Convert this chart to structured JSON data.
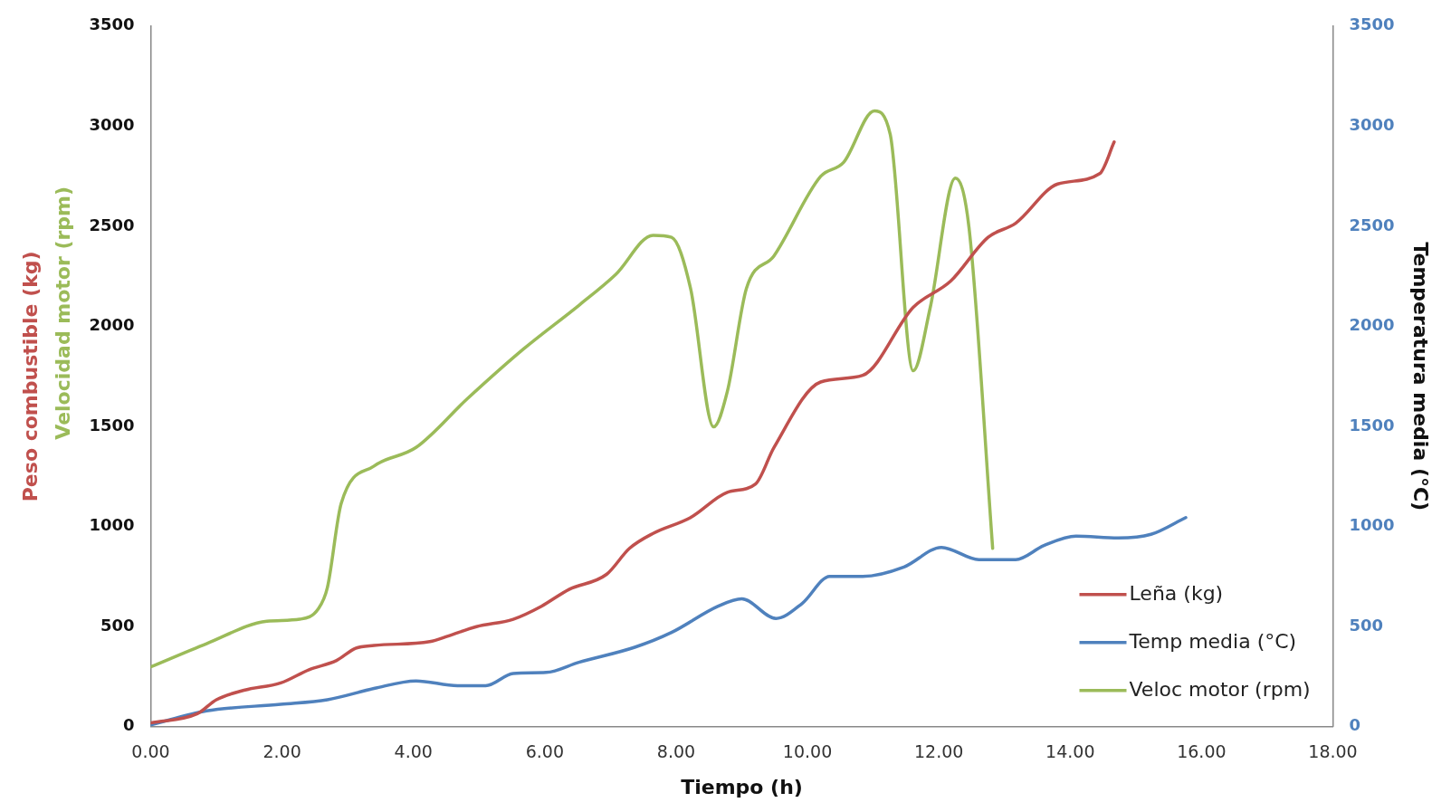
{
  "chart_data": {
    "type": "line",
    "xlabel": "Tiempo (h)",
    "ylabel": "Peso combustible (kg)",
    "y2label": "Temperatura media (°C)",
    "annotations": [
      "Velocidad motor (rpm)"
    ],
    "xlim": [
      0,
      18
    ],
    "xticks": [
      {
        "value": 0,
        "label": "0.00"
      },
      {
        "value": 2,
        "label": "2.00"
      },
      {
        "value": 4,
        "label": "4.00"
      },
      {
        "value": 6,
        "label": "6.00"
      },
      {
        "value": 8,
        "label": "8.00"
      },
      {
        "value": 10,
        "label": "10.00"
      },
      {
        "value": 12,
        "label": "12.00"
      },
      {
        "value": 14,
        "label": "14.00"
      },
      {
        "value": 16,
        "label": "16.00"
      },
      {
        "value": 18,
        "label": "18.00"
      }
    ],
    "ylim": [
      0,
      3500
    ],
    "yticks": [
      0,
      500,
      1000,
      1500,
      2000,
      2500,
      3000,
      3500
    ],
    "y2lim": [
      0,
      3500
    ],
    "y2ticks": [
      0,
      500,
      1000,
      1500,
      2000,
      2500,
      3000,
      3500
    ],
    "grid": false,
    "legend": "bottom right",
    "marker": "none",
    "line_style": "solid",
    "series": [
      {
        "name": "Leña (kg)",
        "color": "#c0504d",
        "x": [
          0,
          0.71,
          1.0,
          1.42,
          1.98,
          2.41,
          2.83,
          3.12,
          3.4,
          4.25,
          4.53,
          4.96,
          5.52,
          5.95,
          6.37,
          6.94,
          7.29,
          7.65,
          8.22,
          8.78,
          9.21,
          9.49,
          10.2,
          10.84,
          11.61,
          12.18,
          12.75,
          13.17,
          13.81,
          14.45,
          14.67
        ],
        "values": [
          19,
          65,
          135,
          182,
          219,
          285,
          331,
          392,
          406,
          425,
          453,
          500,
          537,
          602,
          686,
          761,
          891,
          966,
          1045,
          1171,
          1213,
          1395,
          1722,
          1755,
          2095,
          2226,
          2445,
          2515,
          2711,
          2763,
          2921
        ]
      },
      {
        "name": "Temp media (°C)",
        "color": "#4f81bd",
        "axis": "y2",
        "x": [
          0,
          0.85,
          1.98,
          2.69,
          3.4,
          4.04,
          4.67,
          5.1,
          5.52,
          6.02,
          6.52,
          7.37,
          7.93,
          8.64,
          9.0,
          9.52,
          9.92,
          10.34,
          10.84,
          11.47,
          12.04,
          12.61,
          13.17,
          13.6,
          14.09,
          14.73,
          15.23,
          15.76
        ],
        "values": [
          9,
          79,
          112,
          135,
          191,
          229,
          205,
          205,
          266,
          271,
          322,
          397,
          471,
          602,
          639,
          541,
          616,
          751,
          751,
          798,
          896,
          835,
          835,
          905,
          952,
          943,
          961,
          1045
        ]
      },
      {
        "name": "Veloc motor (rpm)",
        "color": "#9bbb59",
        "x": [
          0,
          0.85,
          1.77,
          2.27,
          2.55,
          2.69,
          2.9,
          3.4,
          4.04,
          4.82,
          5.67,
          6.52,
          7.08,
          7.65,
          7.93,
          8.22,
          8.57,
          8.78,
          9.07,
          9.49,
          10.2,
          10.55,
          11.02,
          11.26,
          11.61,
          11.87,
          12.25,
          12.46,
          12.82
        ],
        "values": [
          299,
          415,
          527,
          537,
          588,
          695,
          1115,
          1302,
          1395,
          1638,
          1885,
          2105,
          2259,
          2455,
          2445,
          2189,
          1498,
          1675,
          2189,
          2352,
          2749,
          2819,
          3076,
          2959,
          1778,
          2095,
          2740,
          2492,
          891
        ]
      }
    ]
  }
}
